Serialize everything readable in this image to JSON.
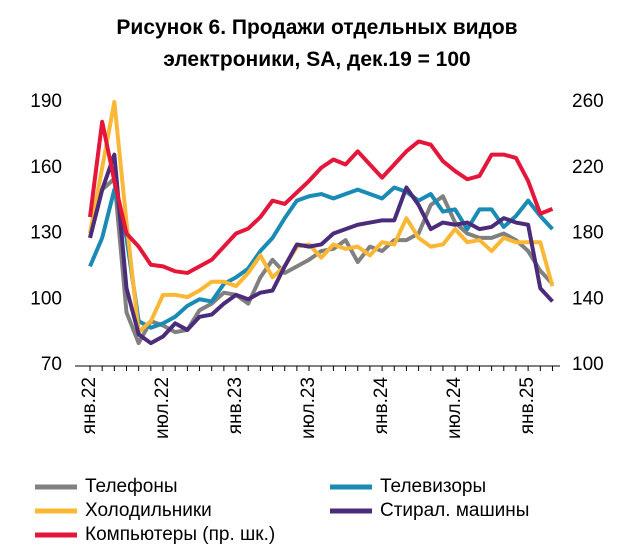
{
  "chart_data": {
    "type": "line",
    "title": "Рисунок 6. Продажи отдельных видов электроники, SA, дек.19 = 100",
    "categories": [
      "янв.22",
      null,
      null,
      null,
      null,
      null,
      "июл.22",
      null,
      null,
      null,
      null,
      null,
      "янв.23",
      null,
      null,
      null,
      null,
      null,
      "июл.23",
      null,
      null,
      null,
      null,
      null,
      "янв.24",
      null,
      null,
      null,
      null,
      null,
      "июл.24",
      null,
      null,
      null,
      null,
      null,
      "янв.25",
      null,
      null
    ],
    "ylim": [
      70,
      190
    ],
    "yticks": [
      70,
      100,
      130,
      160,
      190
    ],
    "y2lim": [
      100,
      260
    ],
    "y2ticks": [
      100,
      140,
      180,
      220,
      260
    ],
    "series": [
      {
        "name": "Телефоны",
        "color": "#808080",
        "values": [
          128,
          150,
          155,
          94,
          80,
          90,
          88,
          85,
          86,
          95,
          98,
          103,
          102,
          98,
          110,
          118,
          112,
          115,
          118,
          122,
          123,
          127,
          117,
          124,
          122,
          127,
          127,
          130,
          143,
          147,
          135,
          130,
          128,
          128,
          130,
          127,
          122,
          113,
          107
        ]
      },
      {
        "name": "Телевизоры",
        "color": "#1a8bb5",
        "values": [
          115,
          128,
          150,
          128,
          90,
          87,
          89,
          92,
          97,
          100,
          99,
          107,
          110,
          114,
          122,
          128,
          137,
          145,
          147,
          148,
          146,
          148,
          150,
          148,
          146,
          151,
          149,
          145,
          148,
          140,
          141,
          132,
          141,
          141,
          133,
          138,
          145,
          138,
          132
        ]
      },
      {
        "name": "Холодильники",
        "color": "#fbb735",
        "values": [
          130,
          160,
          190,
          135,
          85,
          90,
          102,
          102,
          101,
          104,
          108,
          108,
          106,
          112,
          120,
          110,
          115,
          124,
          125,
          119,
          125,
          123,
          124,
          120,
          126,
          125,
          137,
          128,
          124,
          125,
          132,
          126,
          127,
          122,
          128,
          126,
          126,
          126,
          106
        ]
      },
      {
        "name": "Стирал. машины",
        "color": "#4b2c7a",
        "values": [
          128,
          150,
          166,
          105,
          84,
          80,
          83,
          89,
          86,
          92,
          93,
          98,
          102,
          100,
          103,
          104,
          115,
          125,
          124,
          125,
          130,
          132,
          134,
          135,
          136,
          136,
          151,
          143,
          132,
          135,
          134,
          135,
          132,
          133,
          137,
          135,
          134,
          105,
          99
        ]
      },
      {
        "name": "Компьютеры (пр. шк.)",
        "color": "#e4163a",
        "axis": "y2",
        "values": [
          190,
          248,
          212,
          180,
          172,
          161,
          160,
          157,
          156,
          160,
          164,
          172,
          180,
          183,
          190,
          200,
          198,
          205,
          212,
          220,
          225,
          222,
          230,
          222,
          214,
          222,
          230,
          236,
          234,
          224,
          218,
          213,
          215,
          228,
          228,
          226,
          212,
          192,
          195
        ]
      }
    ]
  }
}
